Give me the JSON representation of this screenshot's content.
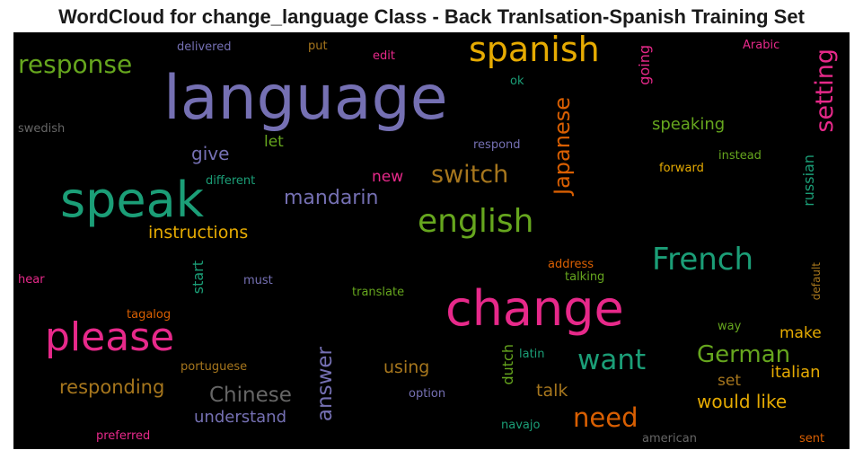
{
  "title": "WordCloud for change_language Class - Back Tranlsation-Spanish Training Set",
  "words": [
    {
      "text": "language",
      "color": "#7570b3"
    },
    {
      "text": "change",
      "color": "#e7298a"
    },
    {
      "text": "speak",
      "color": "#1b9e77"
    },
    {
      "text": "please",
      "color": "#e7298a"
    },
    {
      "text": "spanish",
      "color": "#e6ab02"
    },
    {
      "text": "english",
      "color": "#66a61e"
    },
    {
      "text": "French",
      "color": "#1b9e77"
    },
    {
      "text": "response",
      "color": "#66a61e"
    },
    {
      "text": "switch",
      "color": "#a6761d"
    },
    {
      "text": "setting",
      "color": "#e7298a"
    },
    {
      "text": "Japanese",
      "color": "#d95f02"
    },
    {
      "text": "mandarin",
      "color": "#7570b3"
    },
    {
      "text": "want",
      "color": "#1b9e77"
    },
    {
      "text": "need",
      "color": "#d95f02"
    },
    {
      "text": "German",
      "color": "#66a61e"
    },
    {
      "text": "Chinese",
      "color": "#666666"
    },
    {
      "text": "answer",
      "color": "#7570b3"
    },
    {
      "text": "responding",
      "color": "#a6761d"
    },
    {
      "text": "would like",
      "color": "#e6ab02"
    },
    {
      "text": "instructions",
      "color": "#e6ab02"
    },
    {
      "text": "give",
      "color": "#7570b3"
    },
    {
      "text": "speaking",
      "color": "#66a61e"
    },
    {
      "text": "understand",
      "color": "#7570b3"
    },
    {
      "text": "using",
      "color": "#a6761d"
    },
    {
      "text": "talk",
      "color": "#a6761d"
    },
    {
      "text": "italian",
      "color": "#e6ab02"
    },
    {
      "text": "make",
      "color": "#e6ab02"
    },
    {
      "text": "set",
      "color": "#a6761d"
    },
    {
      "text": "let",
      "color": "#66a61e"
    },
    {
      "text": "new",
      "color": "#e7298a"
    },
    {
      "text": "russian",
      "color": "#1b9e77"
    },
    {
      "text": "start",
      "color": "#1b9e77"
    },
    {
      "text": "dutch",
      "color": "#66a61e"
    },
    {
      "text": "going",
      "color": "#e7298a"
    },
    {
      "text": "delivered",
      "color": "#7570b3"
    },
    {
      "text": "put",
      "color": "#a6761d"
    },
    {
      "text": "edit",
      "color": "#e7298a"
    },
    {
      "text": "Arabic",
      "color": "#e7298a"
    },
    {
      "text": "ok",
      "color": "#1b9e77"
    },
    {
      "text": "swedish",
      "color": "#666666"
    },
    {
      "text": "respond",
      "color": "#7570b3"
    },
    {
      "text": "instead",
      "color": "#66a61e"
    },
    {
      "text": "forward",
      "color": "#e6ab02"
    },
    {
      "text": "different",
      "color": "#1b9e77"
    },
    {
      "text": "address",
      "color": "#d95f02"
    },
    {
      "text": "talking",
      "color": "#66a61e"
    },
    {
      "text": "default",
      "color": "#a6761d"
    },
    {
      "text": "hear",
      "color": "#e7298a"
    },
    {
      "text": "must",
      "color": "#7570b3"
    },
    {
      "text": "translate",
      "color": "#66a61e"
    },
    {
      "text": "tagalog",
      "color": "#d95f02"
    },
    {
      "text": "way",
      "color": "#66a61e"
    },
    {
      "text": "portuguese",
      "color": "#a6761d"
    },
    {
      "text": "latin",
      "color": "#1b9e77"
    },
    {
      "text": "option",
      "color": "#7570b3"
    },
    {
      "text": "navajo",
      "color": "#1b9e77"
    },
    {
      "text": "preferred",
      "color": "#e7298a"
    },
    {
      "text": "american",
      "color": "#666666"
    },
    {
      "text": "sent",
      "color": "#d95f02"
    }
  ]
}
